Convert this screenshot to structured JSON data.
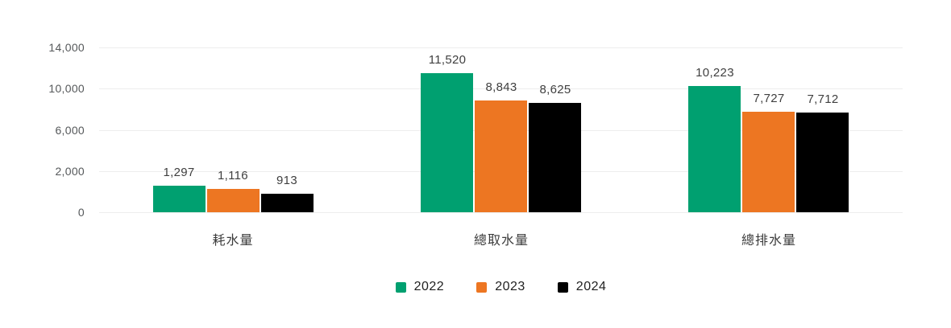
{
  "chart_data": {
    "type": "bar",
    "title": "",
    "categories": [
      "耗水量",
      "總取水量",
      "總排水量"
    ],
    "series": [
      {
        "name": "2022",
        "color": "#00A070",
        "values": [
          1297,
          11520,
          10223
        ],
        "labels": [
          "1,297",
          "11,520",
          "10,223"
        ]
      },
      {
        "name": "2023",
        "color": "#ED7622",
        "values": [
          1116,
          8843,
          7727
        ],
        "labels": [
          "1,116",
          "8,843",
          "7,727"
        ]
      },
      {
        "name": "2024",
        "color": "#000000",
        "values": [
          913,
          8625,
          7712
        ],
        "labels": [
          "913",
          "8,625",
          "7,712"
        ]
      }
    ],
    "y_axis": {
      "ticks": [
        0,
        2000,
        6000,
        10000,
        14000
      ],
      "labels": [
        "0",
        "2,000",
        "6,000",
        "10,000",
        "14,000"
      ]
    },
    "ylim": [
      0,
      14000
    ],
    "grid": true,
    "legend_position": "bottom"
  },
  "style": {
    "background": "#FFFFFF",
    "grid_color": "#EDEDED",
    "axis_label_color": "#55585A",
    "value_label_color": "#3F3F3F",
    "category_label_color": "#3C3C3C",
    "legend_text_color": "#1F1F1F"
  }
}
